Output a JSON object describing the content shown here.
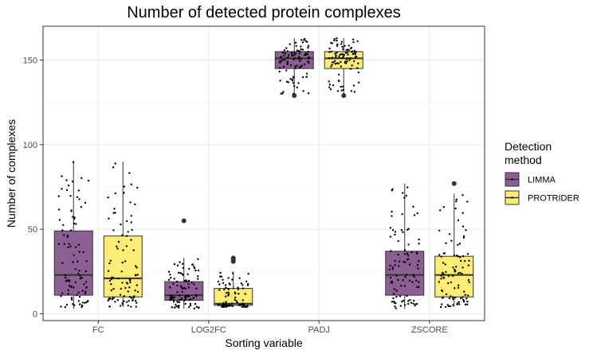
{
  "chart_data": {
    "type": "boxplot",
    "title": "Number of detected protein complexes",
    "xlabel": "Sorting variable",
    "ylabel": "Number of complexes",
    "categories": [
      "FC",
      "LOG2FC",
      "PADJ",
      "ZSCORE"
    ],
    "y_ticks": [
      0,
      50,
      100,
      150
    ],
    "ylim": [
      -4,
      170
    ],
    "grid": true,
    "legend": {
      "title": "Detection method",
      "position": "right"
    },
    "series": [
      {
        "name": "LIMMA",
        "color": "#8C5E94",
        "boxes": [
          {
            "category": "FC",
            "min": 3,
            "q1": 11,
            "median": 23,
            "q3": 49,
            "max": 90,
            "outliers": []
          },
          {
            "category": "LOG2FC",
            "min": 3,
            "q1": 8,
            "median": 11,
            "q3": 19,
            "max": 33,
            "outliers": [
              55
            ]
          },
          {
            "category": "PADJ",
            "min": 130,
            "q1": 145,
            "median": 151,
            "q3": 155,
            "max": 163,
            "outliers": [
              129
            ]
          },
          {
            "category": "ZSCORE",
            "min": 3,
            "q1": 11,
            "median": 23,
            "q3": 37,
            "max": 77,
            "outliers": []
          }
        ]
      },
      {
        "name": "PROTRIDER",
        "color": "#FDED76",
        "boxes": [
          {
            "category": "FC",
            "min": 4,
            "q1": 10,
            "median": 21,
            "q3": 46,
            "max": 90,
            "outliers": []
          },
          {
            "category": "LOG2FC",
            "min": 4,
            "q1": 5,
            "median": 6,
            "q3": 15,
            "max": 25,
            "outliers": [
              33,
              32,
              31
            ]
          },
          {
            "category": "PADJ",
            "min": 130,
            "q1": 145,
            "median": 151,
            "q3": 155,
            "max": 163,
            "outliers": [
              129
            ]
          },
          {
            "category": "ZSCORE",
            "min": 4,
            "q1": 10,
            "median": 23,
            "q3": 34,
            "max": 71,
            "outliers": [
              77
            ]
          }
        ]
      }
    ]
  }
}
